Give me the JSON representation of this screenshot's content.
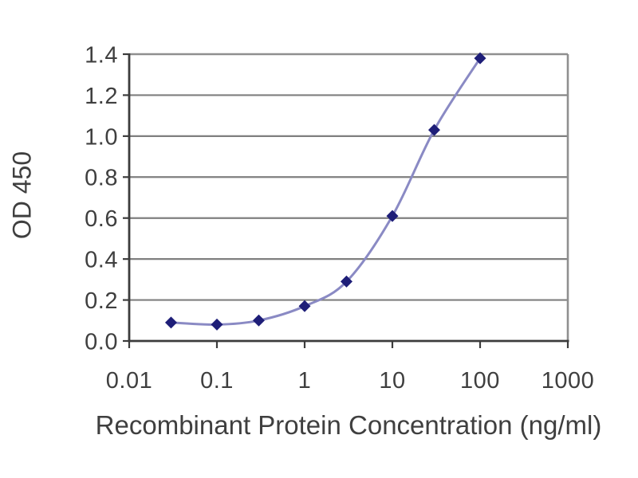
{
  "figure": {
    "background_color": "#ffffff",
    "description_text": ""
  },
  "chart_data": {
    "type": "line",
    "title": "",
    "xlabel": "Recombinant Protein Concentration (ng/ml)",
    "ylabel": "OD 450",
    "x_scale": "log",
    "y_scale": "linear",
    "xlim": [
      0.01,
      1000
    ],
    "ylim": [
      0.0,
      1.4
    ],
    "grid": "horizontal",
    "legend_position": "none",
    "x_ticks": [
      0.01,
      0.1,
      1,
      10,
      100,
      1000
    ],
    "x_tick_labels": [
      "0.01",
      "0.1",
      "1",
      "10",
      "100",
      "1000"
    ],
    "y_ticks": [
      0.0,
      0.2,
      0.4,
      0.6,
      0.8,
      1.0,
      1.2,
      1.4
    ],
    "y_tick_labels": [
      "0.0",
      "0.2",
      "0.4",
      "0.6",
      "0.8",
      "1.0",
      "1.2",
      "1.4"
    ],
    "series": [
      {
        "name": "OD 450",
        "marker": "diamond",
        "smooth": true,
        "x": [
          0.03,
          0.1,
          0.3,
          1,
          3,
          10,
          30,
          100
        ],
        "y": [
          0.09,
          0.08,
          0.1,
          0.17,
          0.29,
          0.61,
          1.03,
          1.38
        ]
      }
    ],
    "colors": {
      "line": "#8a8ac4",
      "marker": "#1e1e78",
      "gridline": "#7f7f7f",
      "frame": "#8f8f8f",
      "axis": "#3c3c3c",
      "text": "#3f3f3f"
    }
  }
}
